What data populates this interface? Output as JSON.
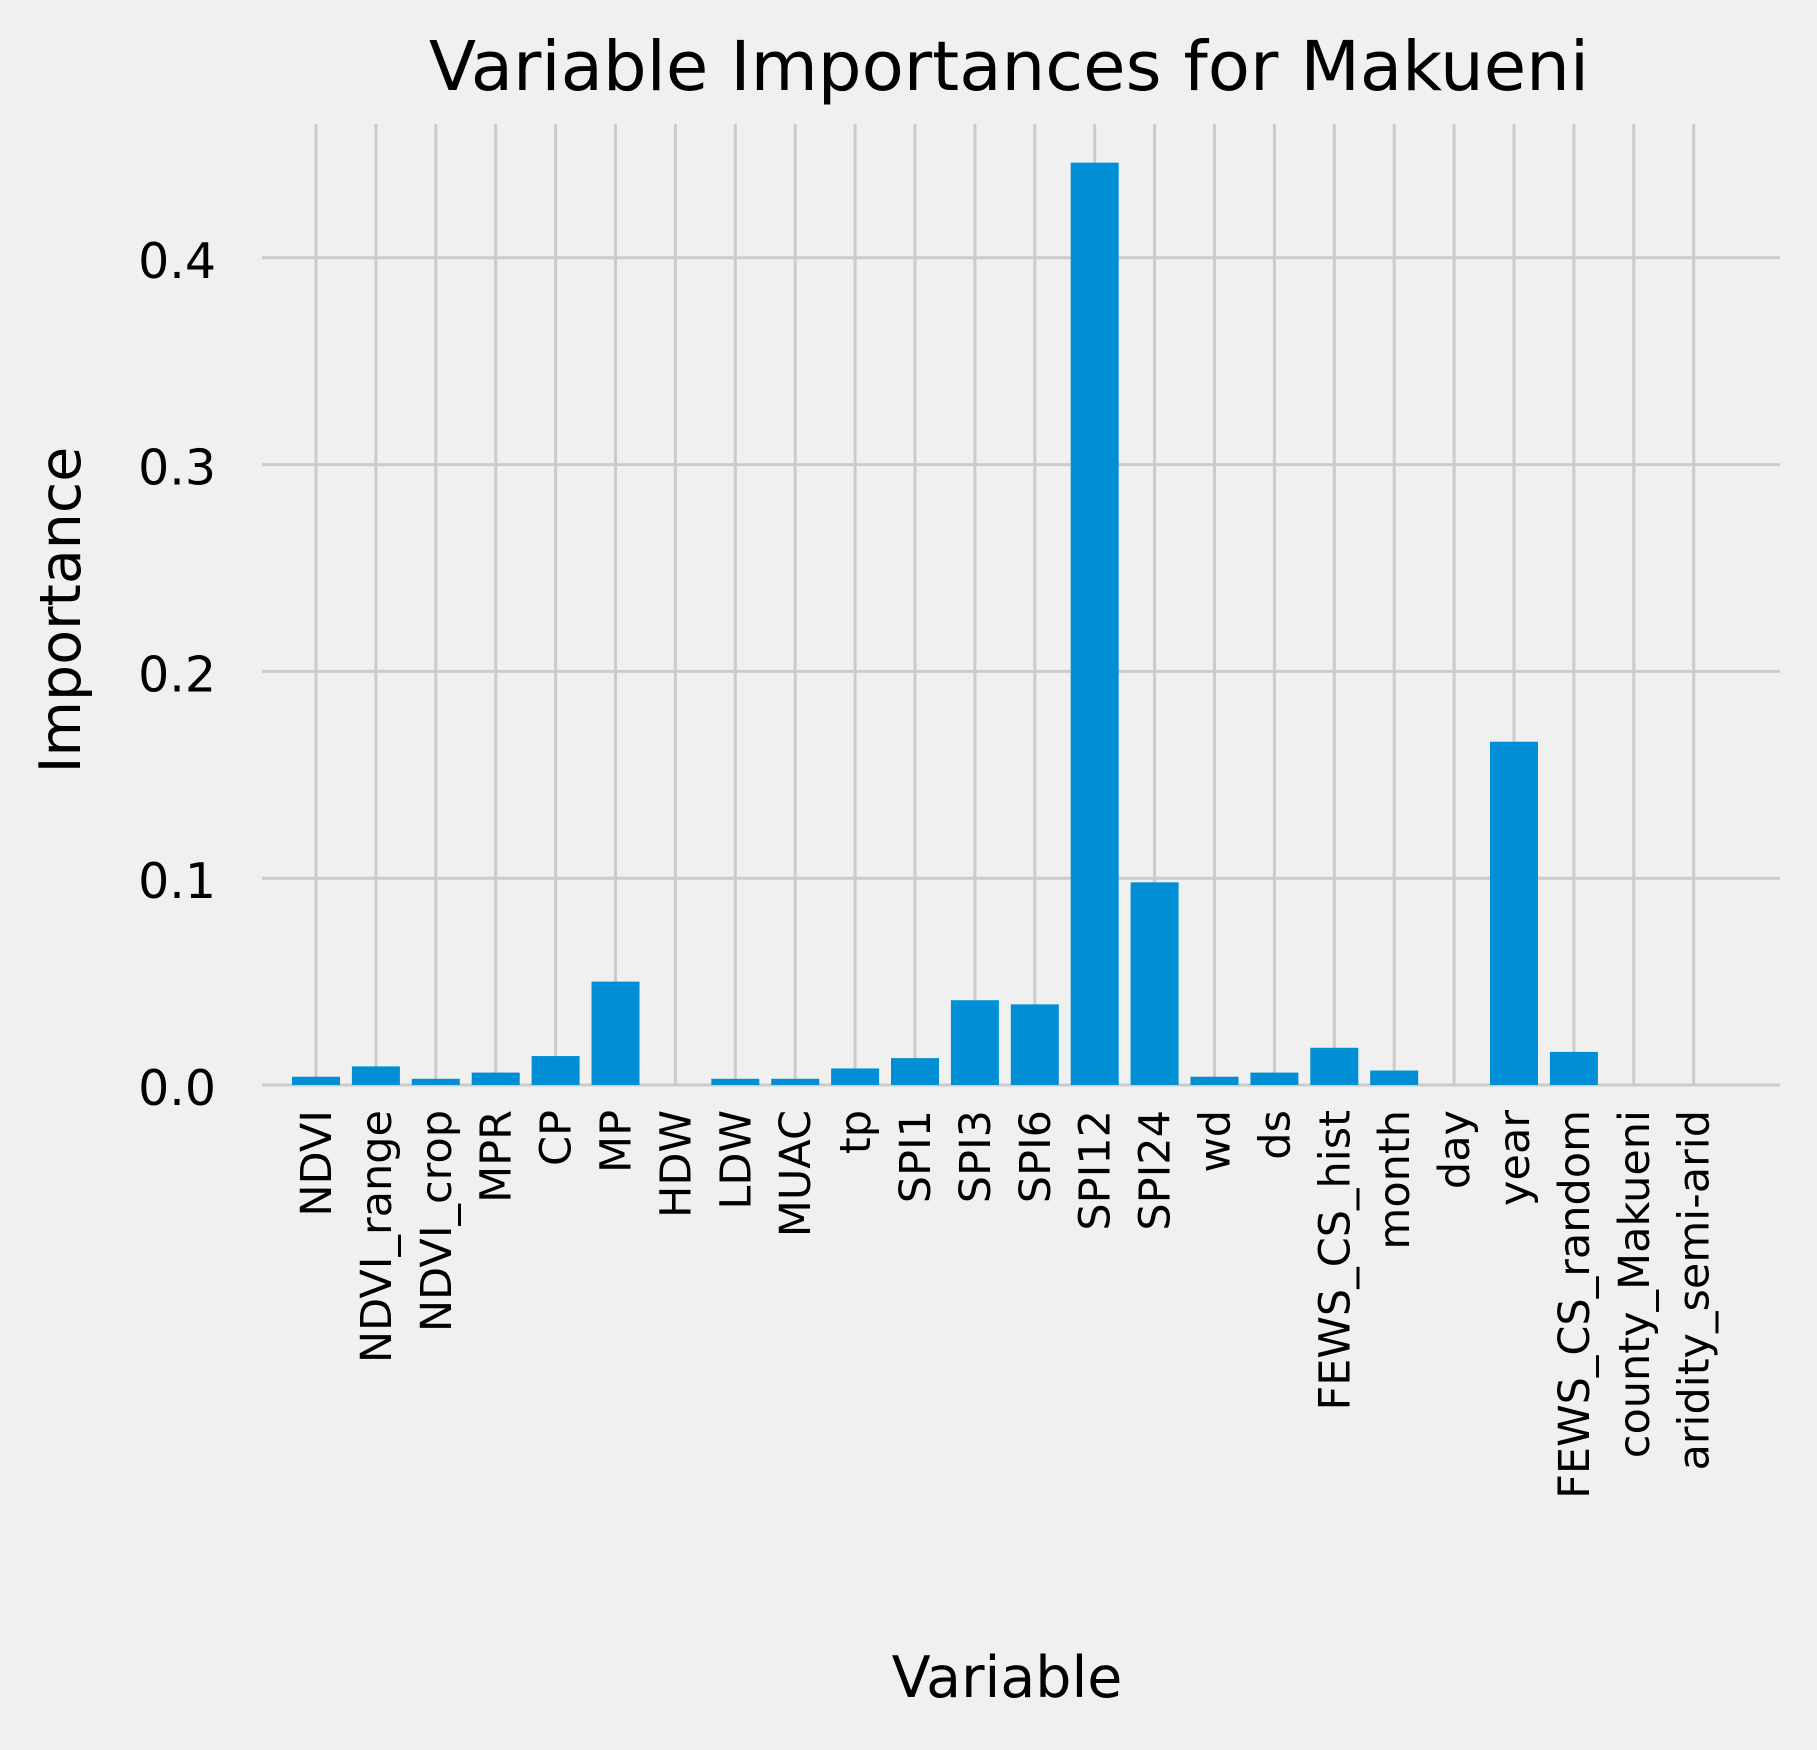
{
  "chart_data": {
    "type": "bar",
    "title": "Variable Importances for Makueni",
    "xlabel": "Variable",
    "ylabel": "Importance",
    "ylim": [
      0,
      0.465
    ],
    "yticks": [
      0.0,
      0.1,
      0.2,
      0.3,
      0.4
    ],
    "ytick_labels": [
      "0.0",
      "0.1",
      "0.2",
      "0.3",
      "0.4"
    ],
    "grid": true,
    "bar_color": "#008fd5",
    "background_color": "#f0f0f0",
    "grid_color": "#cbcbcb",
    "categories": [
      "NDVI",
      "NDVI_range",
      "NDVI_crop",
      "MPR",
      "CP",
      "MP",
      "HDW",
      "LDW",
      "MUAC",
      "tp",
      "SPI1",
      "SPI3",
      "SPI6",
      "SPI12",
      "SPI24",
      "wd",
      "ds",
      "FEWS_CS_hist",
      "month",
      "day",
      "year",
      "FEWS_CS_random",
      "county_Makueni",
      "aridity_semi-arid"
    ],
    "values": [
      0.004,
      0.009,
      0.003,
      0.006,
      0.014,
      0.05,
      0.0,
      0.003,
      0.003,
      0.008,
      0.013,
      0.041,
      0.039,
      0.446,
      0.098,
      0.004,
      0.006,
      0.018,
      0.007,
      0.0,
      0.166,
      0.016,
      0.0,
      0.0
    ]
  }
}
